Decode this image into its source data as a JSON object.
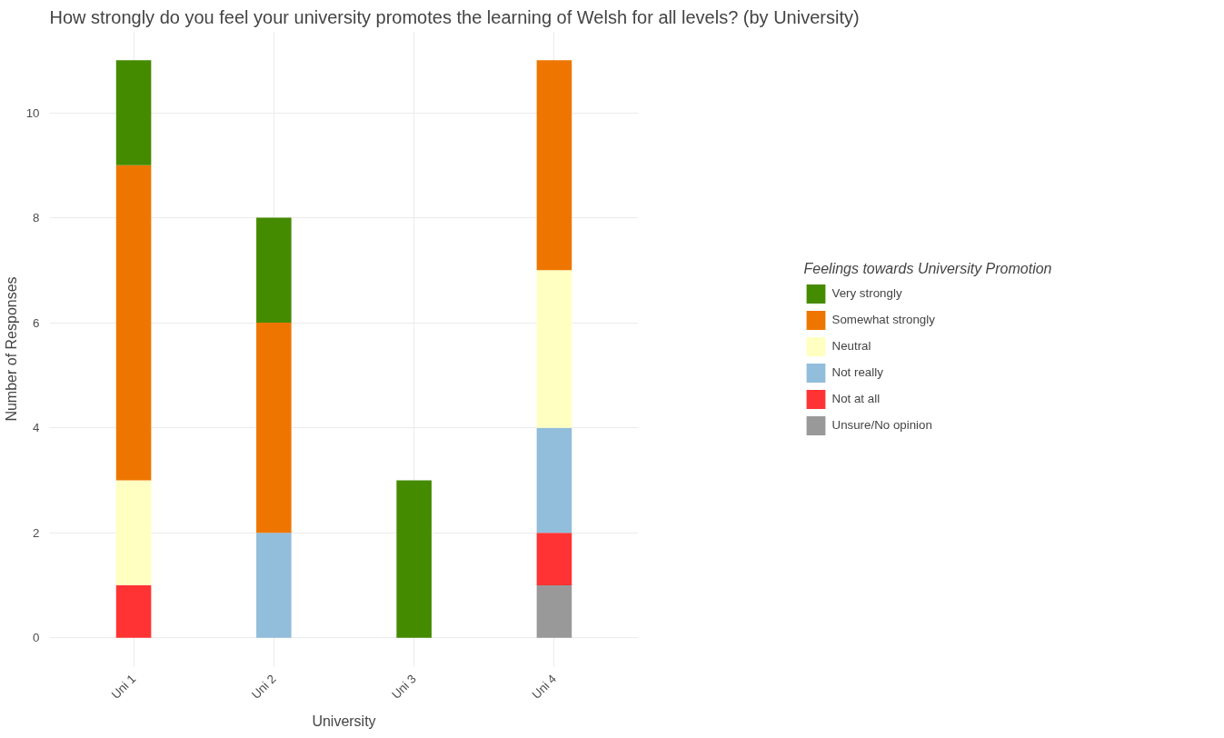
{
  "chart_data": {
    "type": "bar",
    "stacked": true,
    "title": "How strongly do you feel your university promotes the learning of Welsh for all levels? (by University)",
    "xlabel": "University",
    "ylabel": "Number of Responses",
    "legend_title": "Feelings towards University Promotion",
    "legend": "right",
    "grid": true,
    "categories": [
      "Uni 1",
      "Uni 2",
      "Uni 3",
      "Uni 4"
    ],
    "ylim": [
      -0.55,
      11.55
    ],
    "yticks": [
      0,
      2,
      4,
      6,
      8,
      10
    ],
    "series": [
      {
        "name": "Unsure/No opinion",
        "color": "#999999",
        "values": [
          null,
          null,
          null,
          1
        ]
      },
      {
        "name": "Not at all",
        "color": "#ff3333",
        "values": [
          1,
          null,
          null,
          1
        ]
      },
      {
        "name": "Not really",
        "color": "#92bddb",
        "values": [
          null,
          2,
          null,
          2
        ]
      },
      {
        "name": "Neutral",
        "color": "#ffffc2",
        "values": [
          2,
          null,
          null,
          3
        ]
      },
      {
        "name": "Somewhat strongly",
        "color": "#ee7600",
        "values": [
          6,
          4,
          null,
          4
        ]
      },
      {
        "name": "Very strongly",
        "color": "#458b00",
        "values": [
          2,
          2,
          3,
          null
        ]
      }
    ]
  }
}
